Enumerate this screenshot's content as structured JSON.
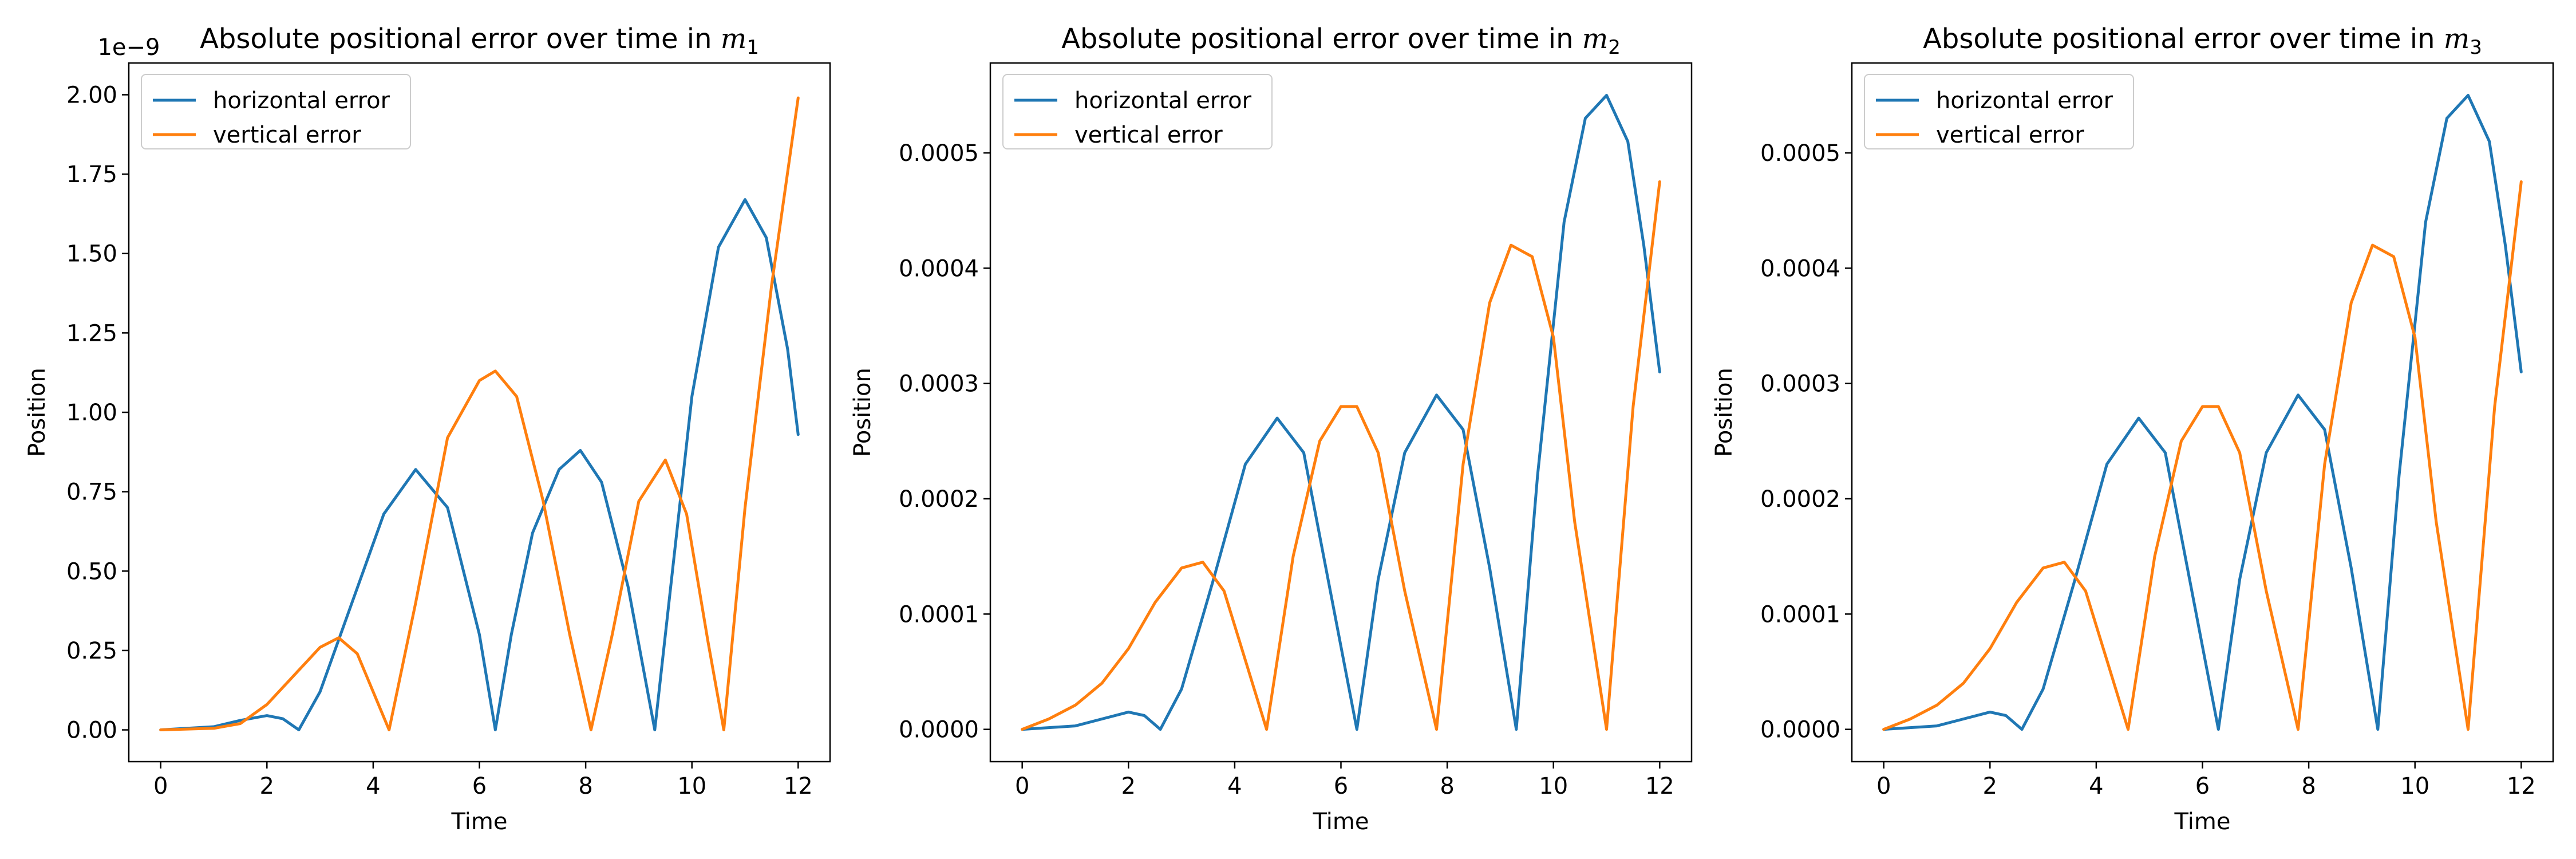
{
  "chart_data": [
    {
      "type": "line",
      "title": "Absolute positional error over time in m",
      "title_subscript": "1",
      "xlabel": "Time",
      "ylabel": "Position",
      "y_offset_label": "1e−9",
      "xlim": [
        -0.6,
        12.6
      ],
      "ylim": [
        -0.1,
        2.1
      ],
      "xticks": [
        0,
        2,
        4,
        6,
        8,
        10,
        12
      ],
      "xtick_labels": [
        "0",
        "2",
        "4",
        "6",
        "8",
        "10",
        "12"
      ],
      "yticks": [
        0,
        0.25,
        0.5,
        0.75,
        1.0,
        1.25,
        1.5,
        1.75,
        2.0
      ],
      "ytick_labels": [
        "0.00",
        "0.25",
        "0.50",
        "0.75",
        "1.00",
        "1.25",
        "1.50",
        "1.75",
        "2.00"
      ],
      "legend_position": "top-left",
      "grid": false,
      "series": [
        {
          "name": "horizontal error",
          "color": "#1f77b4",
          "x": [
            0,
            1,
            1.5,
            2.0,
            2.3,
            2.6,
            3.0,
            3.6,
            4.2,
            4.8,
            5.4,
            6.0,
            6.3,
            6.6,
            7.0,
            7.5,
            7.9,
            8.3,
            8.8,
            9.3,
            9.6,
            10.0,
            10.5,
            11.0,
            11.4,
            11.8,
            12.0
          ],
          "y": [
            0,
            0.01,
            0.03,
            0.045,
            0.035,
            0,
            0.12,
            0.4,
            0.68,
            0.82,
            0.7,
            0.3,
            0,
            0.3,
            0.62,
            0.82,
            0.88,
            0.78,
            0.45,
            0,
            0.45,
            1.05,
            1.52,
            1.67,
            1.55,
            1.2,
            0.93
          ]
        },
        {
          "name": "vertical error",
          "color": "#ff7f0e",
          "x": [
            0,
            1,
            1.5,
            2.0,
            2.5,
            3.0,
            3.35,
            3.7,
            4.0,
            4.3,
            4.8,
            5.4,
            6.0,
            6.3,
            6.7,
            7.2,
            7.7,
            8.1,
            8.5,
            9.0,
            9.5,
            9.9,
            10.3,
            10.6,
            11.0,
            11.5,
            12.0
          ],
          "y": [
            0,
            0.005,
            0.02,
            0.08,
            0.17,
            0.26,
            0.29,
            0.24,
            0.12,
            0,
            0.4,
            0.92,
            1.1,
            1.13,
            1.05,
            0.72,
            0.3,
            0,
            0.3,
            0.72,
            0.85,
            0.68,
            0.28,
            0,
            0.7,
            1.4,
            1.99
          ]
        }
      ]
    },
    {
      "type": "line",
      "title": "Absolute positional error over time in m",
      "title_subscript": "2",
      "xlabel": "Time",
      "ylabel": "Position",
      "y_offset_label": "",
      "xlim": [
        -0.6,
        12.6
      ],
      "ylim": [
        -2.8e-05,
        0.000578
      ],
      "xticks": [
        0,
        2,
        4,
        6,
        8,
        10,
        12
      ],
      "xtick_labels": [
        "0",
        "2",
        "4",
        "6",
        "8",
        "10",
        "12"
      ],
      "yticks": [
        0,
        0.0001,
        0.0002,
        0.0003,
        0.0004,
        0.0005
      ],
      "ytick_labels": [
        "0.0000",
        "0.0001",
        "0.0002",
        "0.0003",
        "0.0004",
        "0.0005"
      ],
      "legend_position": "top-left",
      "grid": false,
      "series": [
        {
          "name": "horizontal error",
          "color": "#1f77b4",
          "x": [
            0,
            1.0,
            1.5,
            2.0,
            2.3,
            2.6,
            3.0,
            3.6,
            4.2,
            4.8,
            5.3,
            5.8,
            6.3,
            6.7,
            7.2,
            7.8,
            8.3,
            8.8,
            9.3,
            9.7,
            10.2,
            10.6,
            11.0,
            11.4,
            11.7,
            12.0
          ],
          "y": [
            0,
            3e-06,
            9e-06,
            1.5e-05,
            1.2e-05,
            0,
            3.5e-05,
            0.00013,
            0.00023,
            0.00027,
            0.00024,
            0.00012,
            0,
            0.00013,
            0.00024,
            0.00029,
            0.00026,
            0.00014,
            0,
            0.00022,
            0.00044,
            0.00053,
            0.00055,
            0.00051,
            0.00042,
            0.00031
          ]
        },
        {
          "name": "vertical error",
          "color": "#ff7f0e",
          "x": [
            0,
            0.5,
            1.0,
            1.5,
            2.0,
            2.5,
            3.0,
            3.4,
            3.8,
            4.2,
            4.6,
            5.1,
            5.6,
            6.0,
            6.3,
            6.7,
            7.2,
            7.8,
            8.3,
            8.8,
            9.2,
            9.6,
            10.0,
            10.4,
            11.0,
            11.5,
            12.0
          ],
          "y": [
            0,
            9e-06,
            2.1e-05,
            4e-05,
            7e-05,
            0.00011,
            0.00014,
            0.000145,
            0.00012,
            6e-05,
            0,
            0.00015,
            0.00025,
            0.00028,
            0.00028,
            0.00024,
            0.00012,
            0,
            0.00023,
            0.00037,
            0.00042,
            0.00041,
            0.00034,
            0.00018,
            0,
            0.00028,
            0.000475
          ]
        }
      ]
    },
    {
      "type": "line",
      "title": "Absolute positional error over time in m",
      "title_subscript": "3",
      "xlabel": "Time",
      "ylabel": "Position",
      "y_offset_label": "",
      "xlim": [
        -0.6,
        12.6
      ],
      "ylim": [
        -2.8e-05,
        0.000578
      ],
      "xticks": [
        0,
        2,
        4,
        6,
        8,
        10,
        12
      ],
      "xtick_labels": [
        "0",
        "2",
        "4",
        "6",
        "8",
        "10",
        "12"
      ],
      "yticks": [
        0,
        0.0001,
        0.0002,
        0.0003,
        0.0004,
        0.0005
      ],
      "ytick_labels": [
        "0.0000",
        "0.0001",
        "0.0002",
        "0.0003",
        "0.0004",
        "0.0005"
      ],
      "legend_position": "top-left",
      "grid": false,
      "series": [
        {
          "name": "horizontal error",
          "color": "#1f77b4",
          "x": [
            0,
            1.0,
            1.5,
            2.0,
            2.3,
            2.6,
            3.0,
            3.6,
            4.2,
            4.8,
            5.3,
            5.8,
            6.3,
            6.7,
            7.2,
            7.8,
            8.3,
            8.8,
            9.3,
            9.7,
            10.2,
            10.6,
            11.0,
            11.4,
            11.7,
            12.0
          ],
          "y": [
            0,
            3e-06,
            9e-06,
            1.5e-05,
            1.2e-05,
            0,
            3.5e-05,
            0.00013,
            0.00023,
            0.00027,
            0.00024,
            0.00012,
            0,
            0.00013,
            0.00024,
            0.00029,
            0.00026,
            0.00014,
            0,
            0.00022,
            0.00044,
            0.00053,
            0.00055,
            0.00051,
            0.00042,
            0.00031
          ]
        },
        {
          "name": "vertical error",
          "color": "#ff7f0e",
          "x": [
            0,
            0.5,
            1.0,
            1.5,
            2.0,
            2.5,
            3.0,
            3.4,
            3.8,
            4.2,
            4.6,
            5.1,
            5.6,
            6.0,
            6.3,
            6.7,
            7.2,
            7.8,
            8.3,
            8.8,
            9.2,
            9.6,
            10.0,
            10.4,
            11.0,
            11.5,
            12.0
          ],
          "y": [
            0,
            9e-06,
            2.1e-05,
            4e-05,
            7e-05,
            0.00011,
            0.00014,
            0.000145,
            0.00012,
            6e-05,
            0,
            0.00015,
            0.00025,
            0.00028,
            0.00028,
            0.00024,
            0.00012,
            0,
            0.00023,
            0.00037,
            0.00042,
            0.00041,
            0.00034,
            0.00018,
            0,
            0.00028,
            0.000475
          ]
        }
      ]
    }
  ]
}
